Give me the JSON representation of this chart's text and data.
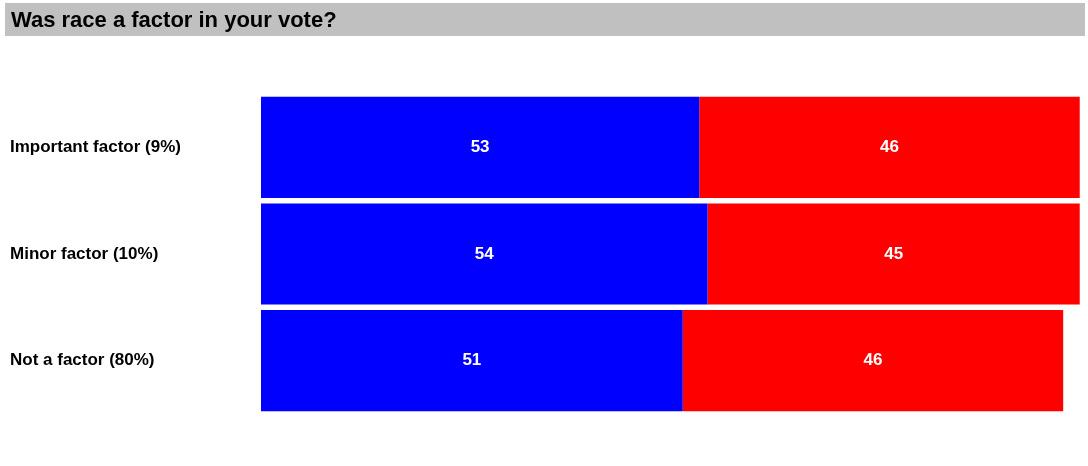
{
  "chart_data": {
    "type": "bar",
    "title": "Was race a factor in your vote?",
    "orientation": "horizontal",
    "categories": [
      "Important factor (9%)",
      "Minor factor (10%)",
      "Not a factor (80%)"
    ],
    "series": [
      {
        "color": "#0000ff",
        "values": [
          53,
          54,
          51
        ]
      },
      {
        "color": "#ff0000",
        "values": [
          46,
          45,
          46
        ]
      }
    ],
    "stacked": true,
    "data_labels": true,
    "grid": false,
    "legend": false
  }
}
